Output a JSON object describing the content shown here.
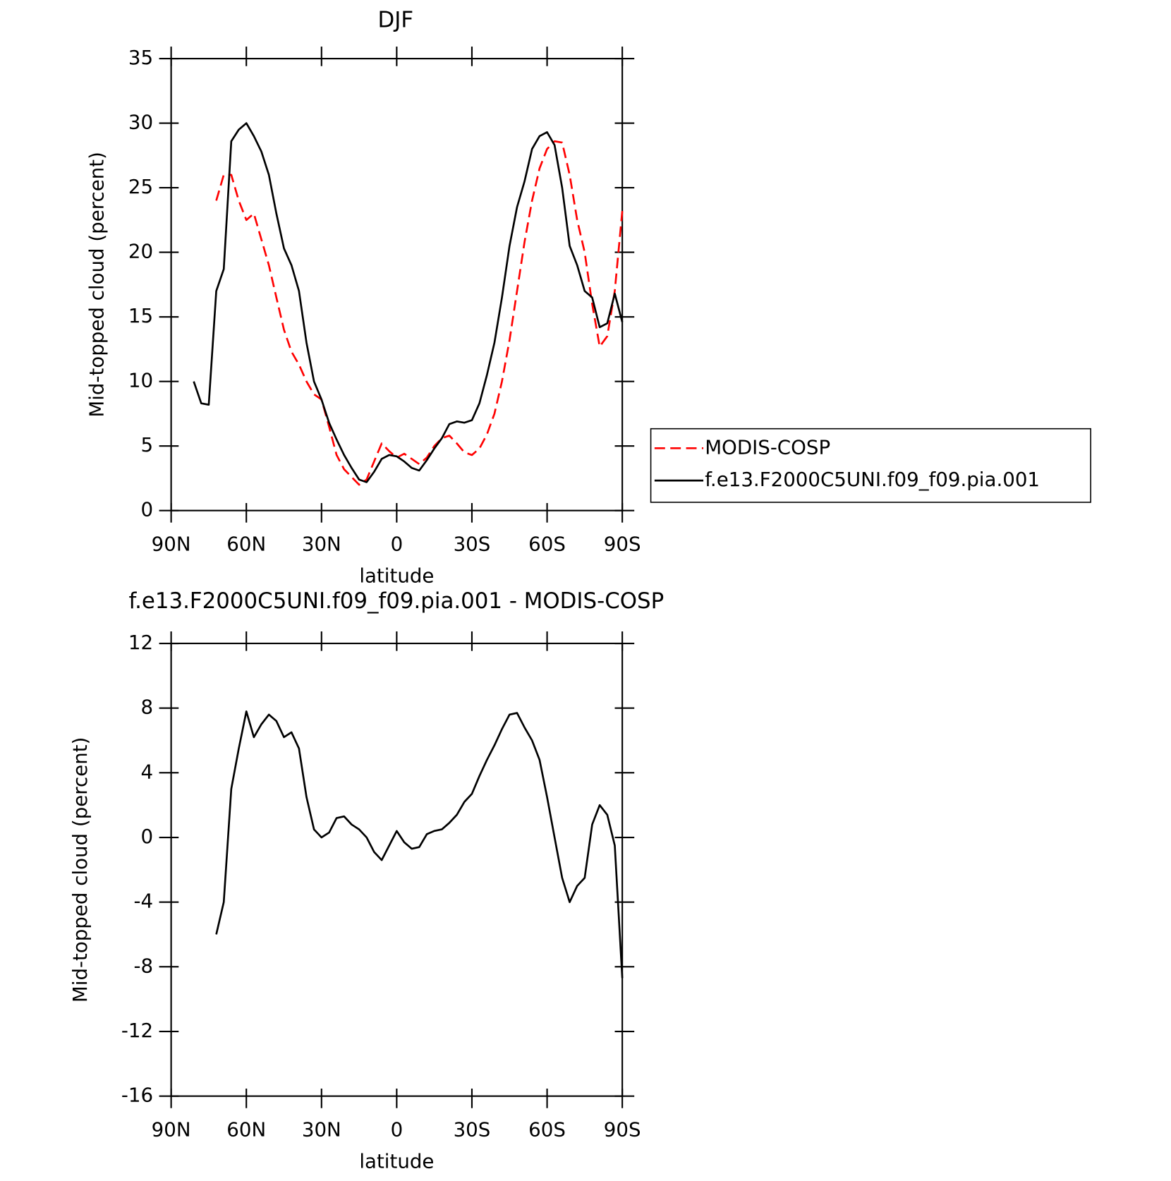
{
  "chart_data": [
    {
      "type": "line",
      "title": "DJF",
      "xlabel": "latitude",
      "ylabel": "Mid-topped cloud (percent)",
      "x": [
        81,
        78,
        75,
        72,
        69,
        66,
        63,
        60,
        57,
        54,
        51,
        48,
        45,
        42,
        39,
        36,
        33,
        30,
        27,
        24,
        21,
        18,
        15,
        12,
        9,
        6,
        3,
        0,
        -3,
        -6,
        -9,
        -12,
        -15,
        -18,
        -21,
        -24,
        -27,
        -30,
        -33,
        -36,
        -39,
        -42,
        -45,
        -48,
        -51,
        -54,
        -57,
        -60,
        -63,
        -66,
        -69,
        -72,
        -75,
        -78,
        -81,
        -84,
        -87,
        -90
      ],
      "xlim": [
        90,
        -90
      ],
      "xticks": [
        {
          "value": 90,
          "label": "90N"
        },
        {
          "value": 60,
          "label": "60N"
        },
        {
          "value": 30,
          "label": "30N"
        },
        0,
        {
          "value": -30,
          "label": "30S"
        },
        {
          "value": -60,
          "label": "60S"
        },
        {
          "value": -90,
          "label": "90S"
        }
      ],
      "ylim": [
        0,
        35
      ],
      "yticks": [
        0,
        5,
        10,
        15,
        20,
        25,
        30,
        35
      ],
      "legend": "right",
      "series": [
        {
          "name": "MODIS-COSP",
          "color": "#ff0000",
          "dash": true,
          "values": [
            null,
            null,
            null,
            24,
            26,
            26,
            24,
            22.5,
            23,
            21,
            19,
            16.5,
            14,
            12.3,
            11.3,
            10,
            9,
            8.6,
            6.5,
            4.3,
            3.2,
            2.6,
            2,
            2.4,
            3.8,
            5.2,
            4.6,
            4.1,
            4.4,
            4,
            3.6,
            4.1,
            5,
            5.6,
            5.8,
            5.2,
            4.5,
            4.3,
            4.8,
            5.9,
            7.5,
            10,
            13.2,
            17,
            20.8,
            24,
            26.5,
            28,
            28.6,
            28.5,
            26,
            22.5,
            20,
            16,
            12.7,
            13.5,
            17,
            23.2
          ]
        },
        {
          "name": "f.e13.F2000C5UNI.f09_f09.pia.001",
          "color": "#000000",
          "dash": false,
          "values": [
            10,
            8.3,
            8.2,
            17,
            18.7,
            28.6,
            29.5,
            30,
            29,
            27.8,
            26,
            23,
            20.3,
            19,
            17,
            13,
            10,
            8.6,
            6.8,
            5.5,
            4.3,
            3.3,
            2.4,
            2.2,
            3,
            4,
            4.3,
            4.2,
            3.8,
            3.3,
            3.1,
            3.9,
            4.8,
            5.6,
            6.7,
            6.9,
            6.8,
            7,
            8.3,
            10.5,
            13,
            16.5,
            20.5,
            23.5,
            25.5,
            28,
            29,
            29.3,
            28.3,
            25,
            20.5,
            19,
            17,
            16.5,
            14.2,
            14.5,
            16.8,
            14.6
          ]
        }
      ]
    },
    {
      "type": "line",
      "title": "f.e13.F2000C5UNI.f09_f09.pia.001 - MODIS-COSP",
      "xlabel": "latitude",
      "ylabel": "Mid-topped cloud (percent)",
      "x": [
        72,
        69,
        66,
        63,
        60,
        57,
        54,
        51,
        48,
        45,
        42,
        39,
        36,
        33,
        30,
        27,
        24,
        21,
        18,
        15,
        12,
        9,
        6,
        3,
        0,
        -3,
        -6,
        -9,
        -12,
        -15,
        -18,
        -21,
        -24,
        -27,
        -30,
        -33,
        -36,
        -39,
        -42,
        -45,
        -48,
        -51,
        -54,
        -57,
        -60,
        -63,
        -66,
        -69,
        -72,
        -75,
        -78,
        -81,
        -84,
        -87,
        -90
      ],
      "xlim": [
        90,
        -90
      ],
      "xticks": [
        {
          "value": 90,
          "label": "90N"
        },
        {
          "value": 60,
          "label": "60N"
        },
        {
          "value": 30,
          "label": "30N"
        },
        0,
        {
          "value": -30,
          "label": "30S"
        },
        {
          "value": -60,
          "label": "60S"
        },
        {
          "value": -90,
          "label": "90S"
        }
      ],
      "ylim": [
        -16,
        12
      ],
      "yticks": [
        -16,
        -12,
        -8,
        -4,
        0,
        4,
        8,
        12
      ],
      "series": [
        {
          "color": "#000000",
          "dash": false,
          "values": [
            -6,
            -4,
            3,
            5.5,
            7.8,
            6.2,
            7,
            7.6,
            7.2,
            6.2,
            6.5,
            5.5,
            2.5,
            0.5,
            0,
            0.3,
            1.2,
            1.3,
            0.8,
            0.5,
            0,
            -0.9,
            -1.4,
            -0.5,
            0.4,
            -0.3,
            -0.7,
            -0.6,
            0.2,
            0.4,
            0.5,
            0.9,
            1.4,
            2.2,
            2.7,
            3.8,
            4.8,
            5.7,
            6.7,
            7.6,
            7.7,
            6.8,
            6,
            4.8,
            2.5,
            0,
            -2.5,
            -4,
            -3,
            -2.5,
            0.8,
            2,
            1.4,
            -0.5,
            -8.7
          ]
        }
      ]
    }
  ]
}
